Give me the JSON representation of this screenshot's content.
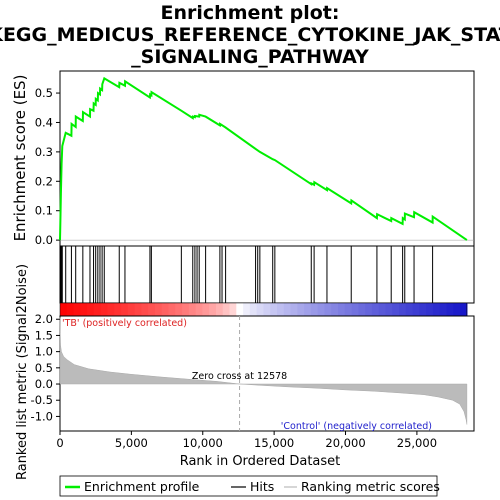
{
  "chart_data": {
    "type": "line",
    "title_lines": [
      "Enrichment plot:",
      "KEGG_MEDICUS_REFERENCE_CYTOKINE_JAK_STAT",
      "_SIGNALING_PATHWAY"
    ],
    "es_ylabel": "Enrichment score (ES)",
    "metric_ylabel": "Ranked list metric (Signal2Noise)",
    "xlabel": "Rank in Ordered Dataset",
    "xlim": [
      0,
      29000
    ],
    "es_ylim": [
      -0.02,
      0.575
    ],
    "metric_ylim": [
      -1.45,
      2.1
    ],
    "x_ticks": [
      0,
      5000,
      10000,
      15000,
      20000,
      25000
    ],
    "x_tick_labels": [
      "0",
      "5,000",
      "10,000",
      "15,000",
      "20,000",
      "25,000"
    ],
    "es_ticks": [
      0.0,
      0.1,
      0.2,
      0.3,
      0.4,
      0.5
    ],
    "es_tick_labels": [
      "0.0",
      "0.1",
      "0.2",
      "0.3",
      "0.4",
      "0.5"
    ],
    "metric_ticks": [
      -1.0,
      -0.5,
      0.0,
      0.5,
      1.0,
      1.5,
      2.0
    ],
    "metric_tick_labels": [
      "-1.0",
      "-0.5",
      "0.0",
      "0.5",
      "1.0",
      "1.5",
      "2.0"
    ],
    "zero_cross_label": "Zero cross at 12578",
    "zero_cross": 12578,
    "positive_label": "'TB' (positively correlated)",
    "negative_label": "'Control' (negatively correlated)",
    "max_rank": 28500,
    "hits": [
      20,
      60,
      110,
      160,
      400,
      800,
      1100,
      1600,
      2100,
      2350,
      2500,
      2650,
      2800,
      2950,
      3100,
      4150,
      4550,
      6300,
      6400,
      8500,
      9300,
      9450,
      9600,
      9750,
      10200,
      11200,
      11350,
      11600,
      13700,
      13850,
      14000,
      14900,
      15050,
      17600,
      17800,
      18700,
      20400,
      22200,
      23200,
      24000,
      24150,
      24800,
      26100
    ],
    "es_curve": [
      [
        0,
        0.0
      ],
      [
        20,
        0.05
      ],
      [
        60,
        0.16
      ],
      [
        110,
        0.26
      ],
      [
        160,
        0.32
      ],
      [
        400,
        0.365
      ],
      [
        800,
        0.355
      ],
      [
        810,
        0.395
      ],
      [
        1100,
        0.385
      ],
      [
        1110,
        0.42
      ],
      [
        1600,
        0.405
      ],
      [
        1610,
        0.435
      ],
      [
        2100,
        0.42
      ],
      [
        2110,
        0.445
      ],
      [
        2350,
        0.44
      ],
      [
        2360,
        0.465
      ],
      [
        2500,
        0.46
      ],
      [
        2510,
        0.48
      ],
      [
        2650,
        0.475
      ],
      [
        2660,
        0.5
      ],
      [
        2800,
        0.495
      ],
      [
        2810,
        0.515
      ],
      [
        2950,
        0.51
      ],
      [
        2960,
        0.53
      ],
      [
        3100,
        0.55
      ],
      [
        4150,
        0.52
      ],
      [
        4160,
        0.535
      ],
      [
        4550,
        0.525
      ],
      [
        4560,
        0.54
      ],
      [
        6300,
        0.485
      ],
      [
        6310,
        0.495
      ],
      [
        6400,
        0.492
      ],
      [
        6410,
        0.503
      ],
      [
        8500,
        0.44
      ],
      [
        9300,
        0.415
      ],
      [
        9310,
        0.42
      ],
      [
        9450,
        0.418
      ],
      [
        9460,
        0.422
      ],
      [
        9750,
        0.42
      ],
      [
        9760,
        0.426
      ],
      [
        10200,
        0.42
      ],
      [
        11200,
        0.39
      ],
      [
        11210,
        0.395
      ],
      [
        11600,
        0.383
      ],
      [
        13700,
        0.31
      ],
      [
        14000,
        0.3
      ],
      [
        14900,
        0.275
      ],
      [
        15050,
        0.272
      ],
      [
        17600,
        0.19
      ],
      [
        17610,
        0.193
      ],
      [
        17800,
        0.188
      ],
      [
        17810,
        0.197
      ],
      [
        18700,
        0.17
      ],
      [
        18710,
        0.177
      ],
      [
        20400,
        0.125
      ],
      [
        20410,
        0.135
      ],
      [
        22200,
        0.075
      ],
      [
        22210,
        0.088
      ],
      [
        23200,
        0.065
      ],
      [
        23210,
        0.075
      ],
      [
        24000,
        0.055
      ],
      [
        24010,
        0.075
      ],
      [
        24150,
        0.07
      ],
      [
        24160,
        0.09
      ],
      [
        24800,
        0.078
      ],
      [
        24810,
        0.095
      ],
      [
        26100,
        0.06
      ],
      [
        26110,
        0.08
      ],
      [
        28500,
        0.0
      ]
    ],
    "metric_curve": [
      [
        0,
        2.05
      ],
      [
        15,
        1.6
      ],
      [
        40,
        1.2
      ],
      [
        100,
        1.0
      ],
      [
        250,
        0.85
      ],
      [
        500,
        0.75
      ],
      [
        1000,
        0.6
      ],
      [
        2000,
        0.47
      ],
      [
        3500,
        0.37
      ],
      [
        5000,
        0.3
      ],
      [
        7000,
        0.22
      ],
      [
        9000,
        0.15
      ],
      [
        11000,
        0.08
      ],
      [
        12578,
        0.0
      ],
      [
        14000,
        -0.04
      ],
      [
        16000,
        -0.09
      ],
      [
        18000,
        -0.13
      ],
      [
        20000,
        -0.18
      ],
      [
        22000,
        -0.22
      ],
      [
        24000,
        -0.28
      ],
      [
        25500,
        -0.33
      ],
      [
        26500,
        -0.4
      ],
      [
        27500,
        -0.5
      ],
      [
        28000,
        -0.62
      ],
      [
        28300,
        -0.85
      ],
      [
        28450,
        -1.1
      ],
      [
        28500,
        -1.25
      ]
    ],
    "legend": [
      "Enrichment profile",
      "Hits",
      "Ranking metric scores"
    ],
    "colors": {
      "es_line": "#00ee00",
      "hits": "#000000",
      "metric_fill": "#bbbbbb",
      "positive": "#dd2222",
      "negative": "#2222cc",
      "zero_line": "#aaaaaa"
    }
  }
}
